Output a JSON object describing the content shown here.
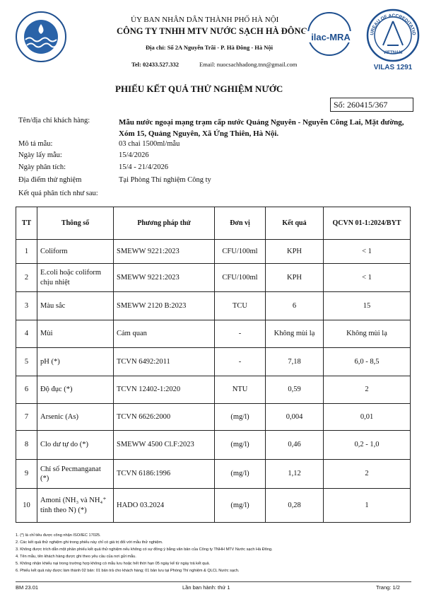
{
  "header": {
    "line1": "ỦY BAN NHÂN DÂN THÀNH PHỐ HÀ NỘI",
    "line2": "CÔNG TY TNHH MTV NƯỚC SẠCH HÀ ĐÔNG",
    "address": "Địa chỉ: Số 2A Nguyễn Trãi - P. Hà Đông - Hà Nội",
    "tel": "Tel: 02433.527.332",
    "email": "Email: nuocsachhadong.tnn@gmail.com"
  },
  "logos": {
    "ilac": "ilac-MRA",
    "badge_top": "BUREAU OF ACCREDITATION",
    "badge_bottom": "VIETNAM",
    "vilas": "VILAS 1291"
  },
  "title": "PHIẾU KẾT QUẢ THỬ NGHIỆM NƯỚC",
  "number": "Số: 260415/367",
  "info": [
    {
      "label": "Tên/địa chỉ khách hàng:",
      "value": "Mẫu nước ngoại mạng trạm cấp nước Quảng Nguyên - Nguyễn Công Lai, Mặt đường, Xóm 15, Quảng Nguyên, Xã Ứng Thiên, Hà Nội."
    },
    {
      "label": "Mô tả mẫu:",
      "value": "03 chai 1500ml/mẫu"
    },
    {
      "label": "Ngày lấy mẫu:",
      "value": "15/4/2026"
    },
    {
      "label": "Ngày phân tích:",
      "value": "15/4 - 21/4/2026"
    },
    {
      "label": "Địa điểm thử nghiệm",
      "value": "Tại Phòng Thí nghiệm Công ty"
    }
  ],
  "results_intro": "Kết quả phân tích như sau:",
  "table": {
    "header": [
      "TT",
      "Thông số",
      "Phương pháp thử",
      "Đơn vị",
      "Kết quả",
      "QCVN 01-1:2024/BYT"
    ],
    "rows": [
      [
        "1",
        "Coliform",
        "SMEWW 9221:2023",
        "CFU/100ml",
        "KPH",
        "< 1"
      ],
      [
        "2",
        "E.coli hoặc coliform chịu nhiệt",
        "SMEWW 9221:2023",
        "CFU/100ml",
        "KPH",
        "< 1"
      ],
      [
        "3",
        "Màu sắc",
        "SMEWW 2120 B:2023",
        "TCU",
        "6",
        "15"
      ],
      [
        "4",
        "Mùi",
        "Cảm quan",
        "-",
        "Không mùi lạ",
        "Không mùi lạ"
      ],
      [
        "5",
        "pH (*)",
        "TCVN 6492:2011",
        "-",
        "7,18",
        "6,0 - 8,5"
      ],
      [
        "6",
        "Độ đục (*)",
        "TCVN 12402-1:2020",
        "NTU",
        "0,59",
        "2"
      ],
      [
        "7",
        "Arsenic (As)",
        "TCVN 6626:2000",
        "(mg/l)",
        "0,004",
        "0,01"
      ],
      [
        "8",
        "Clo dư tự do (*)",
        "SMEWW 4500 Cl.F:2023",
        "(mg/l)",
        "0,46",
        "0,2 - 1,0"
      ],
      [
        "9",
        "Chỉ số Pecmanganat (*)",
        "TCVN 6186:1996",
        "(mg/l)",
        "1,12",
        "2"
      ],
      [
        "10",
        "Amoni (NH₃ và NH₄⁺ tính theo N) (*)",
        "HADO 03.2024",
        "(mg/l)",
        "0,28",
        "1"
      ]
    ]
  },
  "notes": [
    "1. (*) là chỉ tiêu được công nhận ISO/IEC 17025.",
    "2. Các kết quả thử nghiệm ghi trong phiếu này chỉ có giá trị đối với mẫu thử nghiệm.",
    "3. Không được trích dẫn một phần phiếu kết quả thử nghiệm nếu không có sự đồng ý bằng văn bản của Công ty TNHH MTV Nước sạch Hà Đông.",
    "4. Tên mẫu, tên khách hàng được ghi theo yêu cầu của nơi gửi mẫu.",
    "5. Không nhận khiếu nại trong trường hợp không có mẫu lưu hoặc hết thời hạn 05 ngày kể từ ngày trả kết quả.",
    "6. Phiếu kết quả này được làm thành 02 bản: 01 bản trả cho khách hàng; 01 bản lưu tại Phòng Thí nghiệm & QLCL Nước sạch."
  ],
  "footer": {
    "code": "BM 23.01",
    "issue": "Lần ban hành: thứ 1",
    "page": "Trang: 1/2"
  }
}
